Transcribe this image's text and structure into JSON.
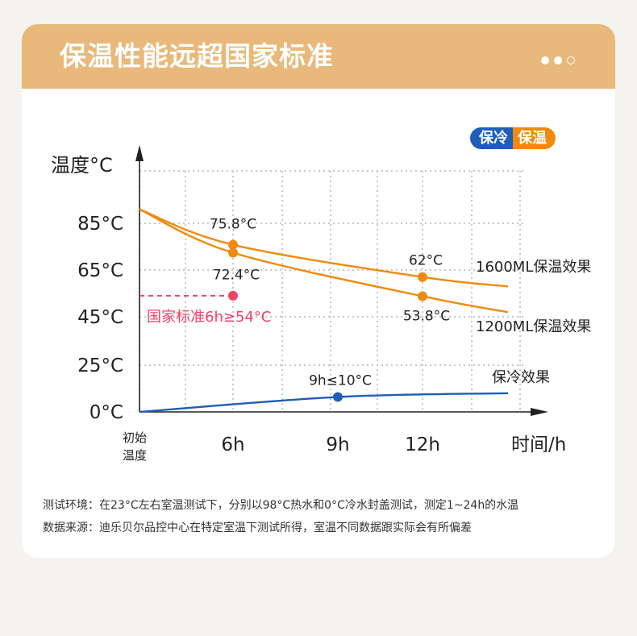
{
  "header": {
    "title": "保温性能远超国家标准",
    "pager": [
      "active",
      "active",
      "inactive"
    ]
  },
  "toggle": {
    "cold_label": "保冷",
    "warm_label": "保温"
  },
  "colors": {
    "orange": "#f08a0f",
    "blue": "#1f5db8",
    "pink": "#f0436a",
    "grid": "#c8c8c8",
    "header": "#e8b97a"
  },
  "chart_data": {
    "type": "line",
    "ylabel": "温度°C",
    "xlabel": "时间/h",
    "y_ticks": [
      "0°C",
      "25°C",
      "45°C",
      "65°C",
      "85°C"
    ],
    "x_ticks": [
      "初始温度",
      "6h",
      "9h",
      "12h"
    ],
    "series": [
      {
        "name": "1600ML保温效果",
        "x": [
          0,
          6,
          12,
          20
        ],
        "y": [
          91,
          75.8,
          62,
          58
        ],
        "labels": [
          "",
          "75.8°C",
          "62°C",
          ""
        ],
        "marked": [
          6,
          12
        ]
      },
      {
        "name": "1200ML保温效果",
        "x": [
          0,
          6,
          12,
          20
        ],
        "y": [
          91,
          72.4,
          53.8,
          47
        ],
        "labels": [
          "",
          "72.4°C",
          "53.8°C",
          ""
        ],
        "marked": [
          6,
          12
        ]
      },
      {
        "name": "保冷效果",
        "x": [
          0,
          9,
          20
        ],
        "y": [
          0,
          8,
          10
        ],
        "labels": [
          "",
          "9h≤10°C",
          ""
        ],
        "marked": [
          9
        ]
      }
    ],
    "standard": {
      "label": "国家标准6h≥54°C",
      "x": 6,
      "y": 54
    }
  },
  "footnotes": {
    "line1": "测试环境：在23°C左右室温测试下，分别以98°C热水和0°C冷水封盖测试，测定1~24h的水温",
    "line2": "数据来源：迪乐贝尔品控中心在特定室温下测试所得，室温不同数据跟实际会有所偏差"
  }
}
